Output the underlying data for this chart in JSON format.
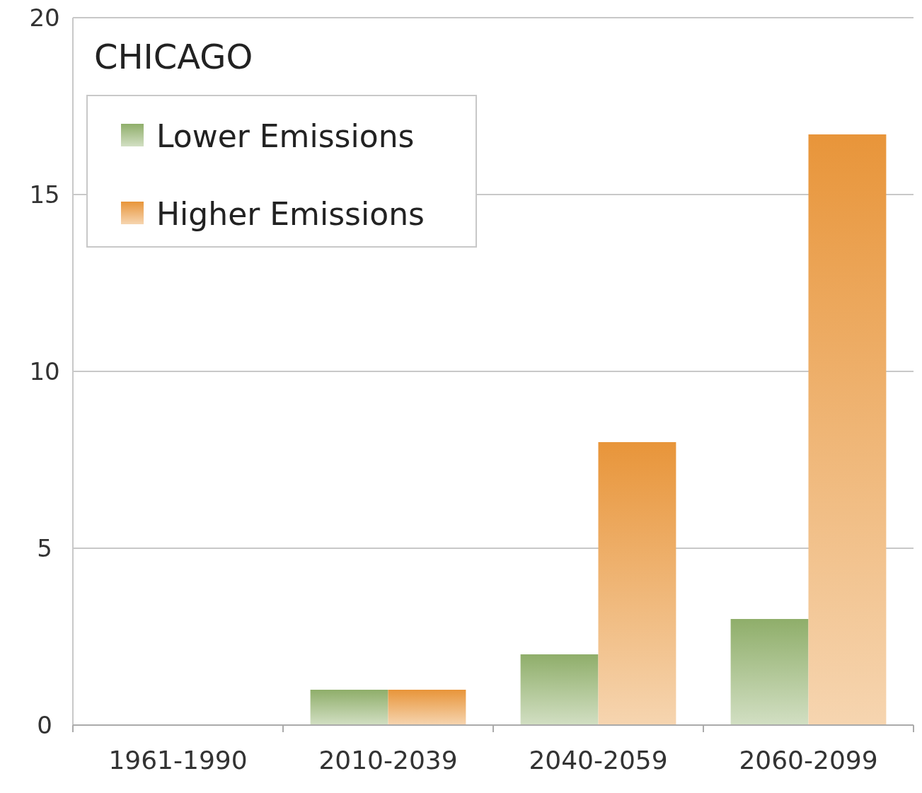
{
  "chart_data": {
    "type": "bar",
    "title": "CHICAGO",
    "categories": [
      "1961-1990",
      "2010-2039",
      "2040-2059",
      "2060-2099"
    ],
    "series": [
      {
        "name": "Lower Emissions",
        "color": "#8fae6a",
        "values": [
          0,
          1,
          2,
          3
        ]
      },
      {
        "name": "Higher Emissions",
        "color": "#e8953a",
        "values": [
          0,
          1,
          8,
          16.7
        ]
      }
    ],
    "ylim": [
      0,
      20
    ],
    "yticks": [
      0,
      5,
      10,
      15,
      20
    ],
    "grid": "y",
    "legend": "top left"
  }
}
